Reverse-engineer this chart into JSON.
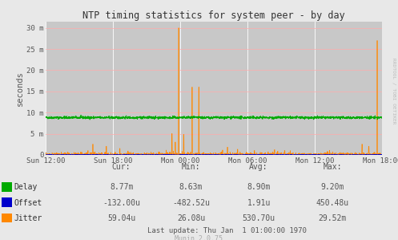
{
  "title": "NTP timing statistics for system peer - by day",
  "ylabel": "seconds",
  "bg_color": "#e8e8e8",
  "plot_bg_color": "#c8c8c8",
  "vgrid_color": "#ffffff",
  "hgrid_color": "#ffaaaa",
  "title_color": "#333333",
  "ytick_labels": [
    "0",
    "5 m",
    "10 m",
    "15 m",
    "20 m",
    "25 m",
    "30 m"
  ],
  "ytick_values": [
    0,
    0.005,
    0.01,
    0.015,
    0.02,
    0.025,
    0.03
  ],
  "ylim": [
    0,
    0.0315
  ],
  "xtick_labels": [
    "Sun 12:00",
    "Sun 18:00",
    "Mon 00:00",
    "Mon 06:00",
    "Mon 12:00",
    "Mon 18:00"
  ],
  "xtick_frac": [
    0.0,
    0.2,
    0.4,
    0.6,
    0.8,
    1.0
  ],
  "delay_color": "#00aa00",
  "offset_color": "#0000cc",
  "jitter_color": "#ff8800",
  "delay_base": 0.0088,
  "watermark": "RRDTOOL / TOBI OETIKER",
  "munin_version": "Munin 2.0.75",
  "legend_labels": [
    "Delay",
    "Offset",
    "Jitter"
  ],
  "legend_colors": [
    "#00aa00",
    "#0000cc",
    "#ff8800"
  ],
  "stats_headers": [
    "Cur:",
    "Min:",
    "Avg:",
    "Max:"
  ],
  "stats_delay": [
    "8.77m",
    "8.63m",
    "8.90m",
    "9.20m"
  ],
  "stats_offset": [
    "-132.00u",
    "-482.52u",
    "1.91u",
    "450.48u"
  ],
  "stats_jitter": [
    "59.04u",
    "26.08u",
    "530.70u",
    "29.52m"
  ],
  "last_update": "Last update: Thu Jan  1 01:00:00 1970"
}
